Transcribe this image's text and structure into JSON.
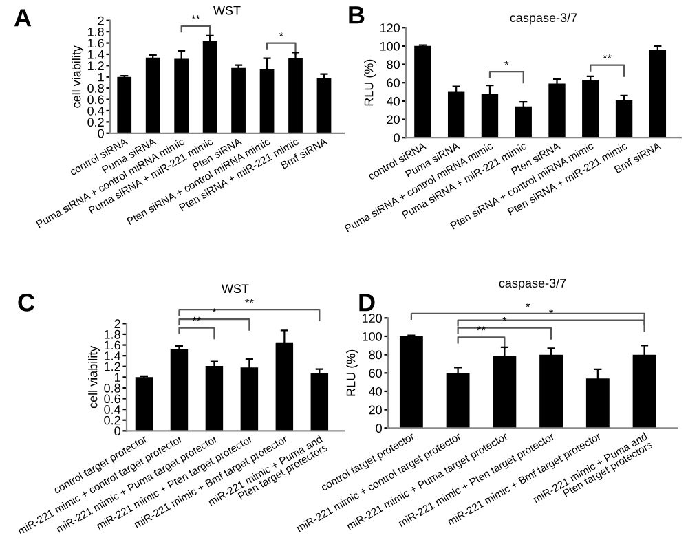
{
  "chart_data": [
    {
      "type": "bar",
      "title": "WST",
      "ylabel": "cell viability",
      "categories": [
        "control siRNA",
        "Puma siRNA",
        "Puma siRNA + control miRNA mimic",
        "Puma siRNA + miR-221 mimic",
        "Pten siRNA",
        "Pten siRNA + control miRNA mimic",
        "Pten siRNA + miR-221 mimic",
        "Bmf siRNA"
      ],
      "values": [
        1.0,
        1.34,
        1.32,
        1.63,
        1.16,
        1.13,
        1.33,
        0.98
      ],
      "errors": [
        0.02,
        0.05,
        0.14,
        0.1,
        0.05,
        0.2,
        0.1,
        0.07
      ],
      "color": "#000000",
      "ylim": [
        0,
        2
      ],
      "yticks": [
        0,
        0.2,
        0.4,
        0.6,
        0.8,
        1,
        1.2,
        1.4,
        1.6,
        1.8,
        2
      ],
      "grid": false,
      "annotations": [
        "A",
        "**",
        "*"
      ]
    },
    {
      "type": "bar",
      "title": "caspase-3/7",
      "ylabel": "RLU (%)",
      "categories": [
        "control siRNA",
        "Puma siRNA",
        "Puma siRNA + control miRNA mimic",
        "Puma siRNA + miR-221 mimic",
        "Pten siRNA",
        "Pten siRNA + control miRNA mimic",
        "Pten siRNA + miR-221 mimic",
        "Bmf siRNA"
      ],
      "values": [
        100,
        50,
        48,
        34,
        59,
        63,
        41,
        96
      ],
      "errors": [
        1,
        6,
        9,
        5,
        5,
        4,
        5,
        4
      ],
      "color": "#000000",
      "ylim": [
        0,
        120
      ],
      "yticks": [
        0,
        20,
        40,
        60,
        80,
        100,
        120
      ],
      "grid": false,
      "annotations": [
        "B",
        "*",
        "**"
      ]
    },
    {
      "type": "bar",
      "title": "WST",
      "ylabel": "cell viability",
      "categories": [
        "control target protector",
        "miR-221 mimic + control target protector",
        "miR-221 mimic + Puma target protector",
        "miR-221 mimic + Pten target protector",
        "miR-221 mimic + Bmf target protector",
        "miR-221 mimic + Puma and\nPten target protectors"
      ],
      "values": [
        1.0,
        1.53,
        1.21,
        1.18,
        1.65,
        1.07
      ],
      "errors": [
        0.02,
        0.05,
        0.08,
        0.16,
        0.22,
        0.08
      ],
      "color": "#000000",
      "ylim": [
        0,
        2
      ],
      "yticks": [
        0,
        0.2,
        0.4,
        0.6,
        0.8,
        1,
        1.2,
        1.4,
        1.6,
        1.8,
        2
      ],
      "grid": false,
      "annotations": [
        "C",
        "**",
        "*",
        "**"
      ]
    },
    {
      "type": "bar",
      "title": "caspase-3/7",
      "ylabel": "RLU (%)",
      "categories": [
        "control target protector",
        "miR-221 mimic + control target protector",
        "miR-221 mimic + Puma target protector",
        "miR-221 mimic + Pten target protector",
        "miR-221 mimic + Bmf target protector",
        "miR-221 mimic + Puma and\nPten target protectors"
      ],
      "values": [
        100,
        60,
        79,
        80,
        54,
        80
      ],
      "errors": [
        1,
        6,
        9,
        7,
        10,
        10
      ],
      "color": "#000000",
      "ylim": [
        0,
        120
      ],
      "yticks": [
        0,
        20,
        40,
        60,
        80,
        100,
        120
      ],
      "grid": false,
      "annotations": [
        "D",
        "*",
        "*",
        "*",
        "**"
      ]
    }
  ]
}
